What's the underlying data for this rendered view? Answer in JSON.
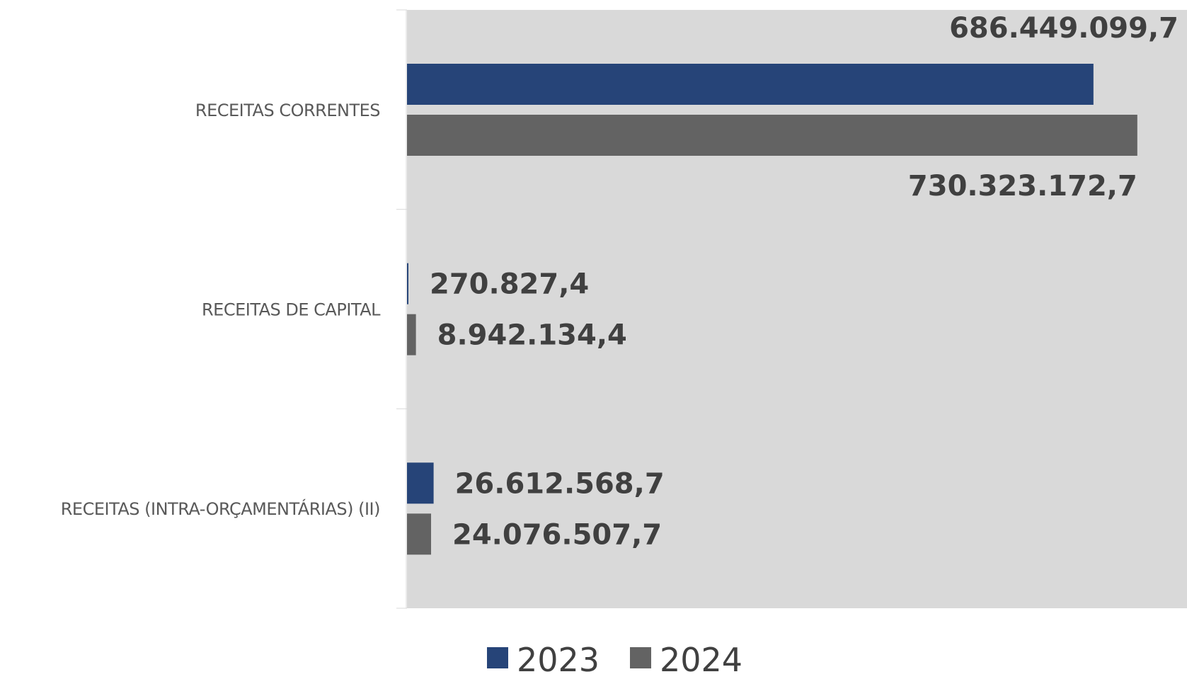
{
  "chart_data": {
    "type": "bar",
    "orientation": "horizontal",
    "categories": [
      "RECEITAS CORRENTES",
      "RECEITAS DE CAPITAL",
      "RECEITAS (INTRA-ORÇAMENTÁRIAS) (II)"
    ],
    "series": [
      {
        "name": "2023",
        "color": "#264478",
        "values": [
          686449099.7,
          270827.4,
          26612568.7
        ],
        "labels": [
          "686.449.099,7",
          "270.827,4",
          "26.612.568,7"
        ]
      },
      {
        "name": "2024",
        "color": "#636363",
        "values": [
          730323172.7,
          8942134.4,
          24076507.7
        ],
        "labels": [
          "730.323.172,7",
          "8.942.134,4",
          "24.076.507,7"
        ]
      }
    ],
    "xlim": [
      0,
      780000000
    ],
    "plot_background": "#d9d9d9",
    "legend_position": "bottom",
    "grid": false
  }
}
